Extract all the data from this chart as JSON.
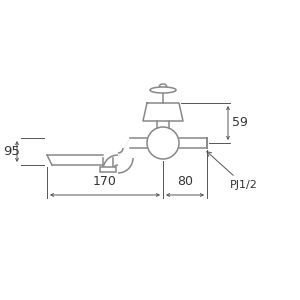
{
  "bg_color": "#ffffff",
  "line_color": "#888888",
  "dim_color": "#555555",
  "text_color": "#333333",
  "fig_size": [
    3.0,
    3.0
  ],
  "dpi": 100,
  "label_59": "59",
  "label_95": "95",
  "label_170": "170",
  "label_80": "80",
  "label_pj": "PJ1/2",
  "faucet_lw": 1.1,
  "dim_lw": 0.7
}
